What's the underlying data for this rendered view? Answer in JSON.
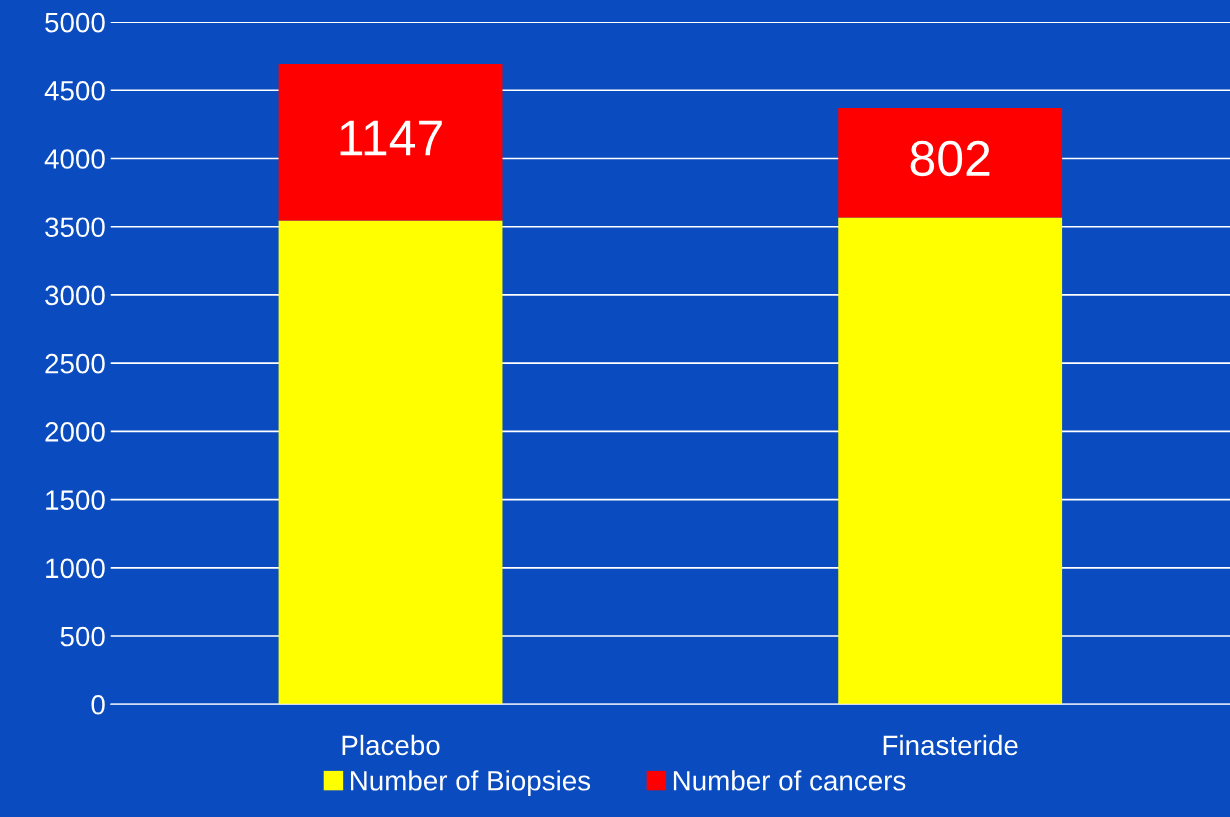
{
  "chart_data": {
    "type": "bar",
    "stacked": true,
    "categories": [
      "Placebo",
      "Finasteride"
    ],
    "series": [
      {
        "name": "Number of Biopsies",
        "color": "#ffff00",
        "values": [
          3545,
          3568
        ]
      },
      {
        "name": "Number of cancers",
        "color": "#ff0000",
        "values": [
          1147,
          802
        ],
        "value_labels": [
          "1147",
          "802"
        ]
      }
    ],
    "ylim": [
      0,
      5000
    ],
    "yticks": [
      0,
      500,
      1000,
      1500,
      2000,
      2500,
      3000,
      3500,
      4000,
      4500,
      5000
    ],
    "grid": "y",
    "legend": "bottom"
  }
}
